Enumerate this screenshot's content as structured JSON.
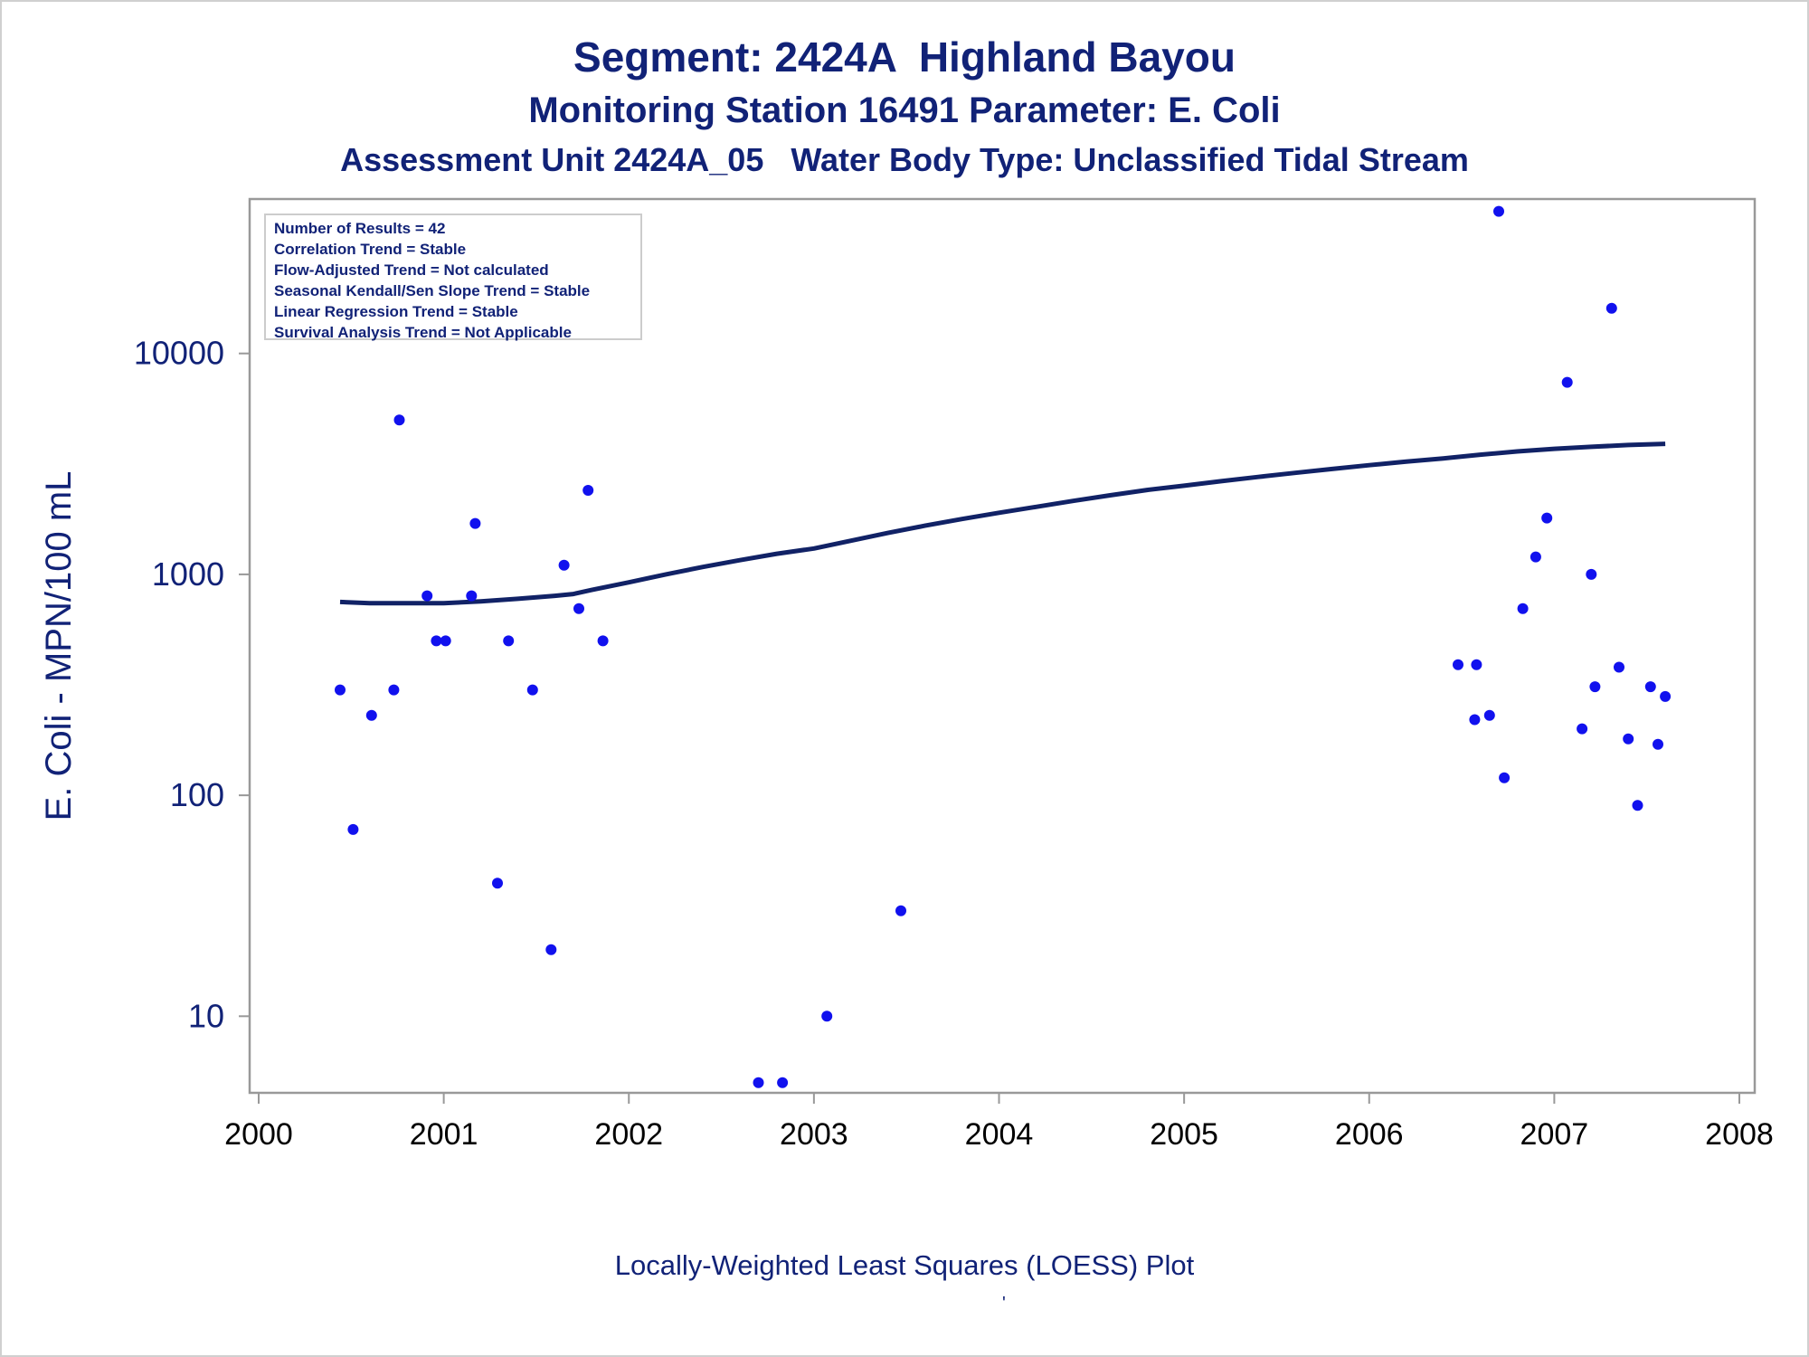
{
  "titles": {
    "line1": "Segment: 2424A  Highland Bayou",
    "line2": "Monitoring Station 16491 Parameter: E. Coli",
    "line3": "Assessment Unit 2424A_05   Water Body Type: Unclassified Tidal Stream"
  },
  "stats": [
    "Number of Results = 42",
    "Correlation Trend = Stable",
    "Flow-Adjusted Trend = Not calculated",
    "Seasonal Kendall/Sen Slope Trend = Stable",
    "Linear Regression Trend = Stable",
    "Survival Analysis Trend = Not Applicable"
  ],
  "footnote": "Locally-Weighted Least Squares (LOESS) Plot",
  "footnote_mark": "'",
  "colors": {
    "text": "#112277",
    "points": "#1111ee",
    "loess": "#112266",
    "frame": "#999999"
  },
  "chart_data": {
    "type": "scatter",
    "xlabel": "",
    "ylabel": "E. Coli - MPN/100 mL",
    "x_scale": "time",
    "y_scale": "log",
    "xlim": [
      2000,
      2008
    ],
    "ylim": [
      4.5,
      50000
    ],
    "x_ticks": [
      "2000",
      "2001",
      "2002",
      "2003",
      "2004",
      "2005",
      "2006",
      "2007",
      "2008"
    ],
    "y_ticks": [
      "10",
      "100",
      "1000",
      "10000"
    ],
    "grid": false,
    "series": [
      {
        "type": "scatter",
        "x": [
          2000.44,
          2000.51,
          2000.61,
          2000.73,
          2000.76,
          2000.91,
          2000.96,
          2001.01,
          2001.15,
          2001.17,
          2001.29,
          2001.35,
          2001.48,
          2001.58,
          2001.65,
          2001.73,
          2001.78,
          2001.86,
          2002.7,
          2002.83,
          2003.07,
          2003.47,
          2006.48,
          2006.57,
          2006.58,
          2006.65,
          2006.7,
          2006.73,
          2006.83,
          2006.9,
          2006.96,
          2007.07,
          2007.15,
          2007.2,
          2007.22,
          2007.31,
          2007.35,
          2007.4,
          2007.45,
          2007.52,
          2007.56,
          2007.6
        ],
        "y": [
          300,
          70,
          230,
          300,
          5000,
          800,
          500,
          500,
          800,
          1700,
          40,
          500,
          300,
          20,
          1100,
          700,
          2400,
          500,
          5,
          5,
          10,
          30,
          390,
          220,
          390,
          230,
          44000,
          120,
          700,
          1200,
          1800,
          7400,
          200,
          1000,
          310,
          16000,
          380,
          180,
          90,
          310,
          170,
          280
        ]
      },
      {
        "type": "line",
        "x": [
          2000.44,
          2000.6,
          2000.8,
          2001.0,
          2001.2,
          2001.4,
          2001.6,
          2001.7,
          2001.8,
          2002.0,
          2002.2,
          2002.4,
          2002.6,
          2002.8,
          2003.0,
          2003.2,
          2003.4,
          2003.6,
          2003.8,
          2004.0,
          2004.2,
          2004.4,
          2004.6,
          2004.8,
          2005.0,
          2005.2,
          2005.4,
          2005.6,
          2005.8,
          2006.0,
          2006.2,
          2006.4,
          2006.6,
          2006.8,
          2007.0,
          2007.2,
          2007.4,
          2007.6
        ],
        "y": [
          750,
          740,
          740,
          740,
          755,
          775,
          800,
          815,
          850,
          920,
          1000,
          1080,
          1160,
          1240,
          1310,
          1420,
          1540,
          1660,
          1780,
          1900,
          2020,
          2150,
          2280,
          2410,
          2520,
          2640,
          2760,
          2880,
          3000,
          3120,
          3240,
          3350,
          3480,
          3600,
          3700,
          3780,
          3850,
          3900
        ]
      }
    ]
  }
}
